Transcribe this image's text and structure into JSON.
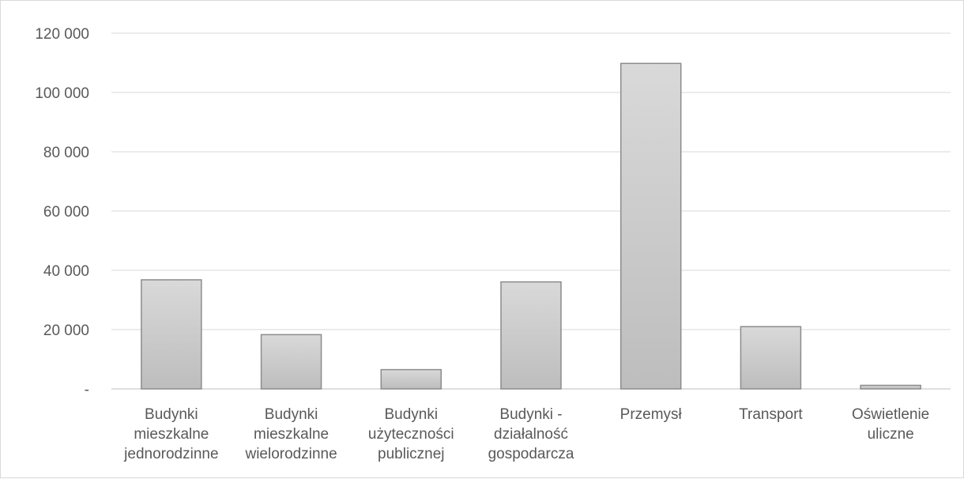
{
  "chart_data": {
    "type": "bar",
    "title": "",
    "xlabel": "",
    "ylabel": "",
    "categories": [
      [
        "Budynki",
        "mieszkalne",
        "jednorodzinne"
      ],
      [
        "Budynki",
        "mieszkalne",
        "wielorodzinne"
      ],
      [
        "Budynki",
        "użyteczności",
        "publicznej"
      ],
      [
        "Budynki -",
        "działalność",
        "gospodarcza"
      ],
      [
        "Przemysł"
      ],
      [
        "Transport"
      ],
      [
        "Oświetlenie",
        "uliczne"
      ]
    ],
    "values": [
      36800,
      18300,
      6500,
      36100,
      109800,
      21000,
      1200
    ],
    "ylim": [
      0,
      120000
    ],
    "yticks": [
      0,
      20000,
      40000,
      60000,
      80000,
      100000,
      120000
    ],
    "ytick_labels": [
      "-",
      "20 000",
      "40 000",
      "60 000",
      "80 000",
      "100 000",
      "120 000"
    ],
    "grid": true,
    "legend": "none",
    "colors": {
      "bar_top": "#d9d9d9",
      "bar_bottom": "#bdbdbd",
      "bar_stroke": "#8c8c8c",
      "grid": "#d9d9d9",
      "axis": "#bfbfbf",
      "text": "#595959"
    }
  }
}
